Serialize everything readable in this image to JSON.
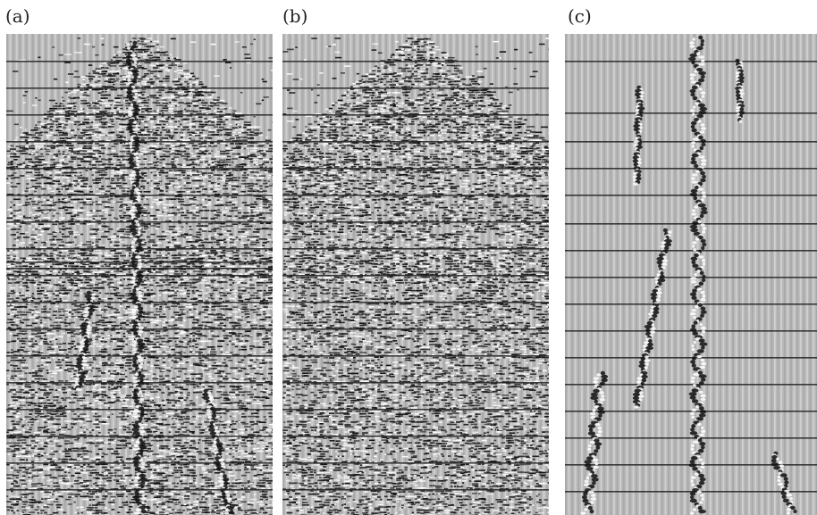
{
  "figure": {
    "panels": [
      {
        "id": "a",
        "label": "(a)"
      },
      {
        "id": "b",
        "label": "(b)"
      },
      {
        "id": "c",
        "label": "(c)"
      }
    ]
  },
  "colors": {
    "background": "#b9b9b9",
    "trace_light": "#e1e1e1",
    "trace_dark": "#9c9c9c",
    "ink": "#111111"
  }
}
